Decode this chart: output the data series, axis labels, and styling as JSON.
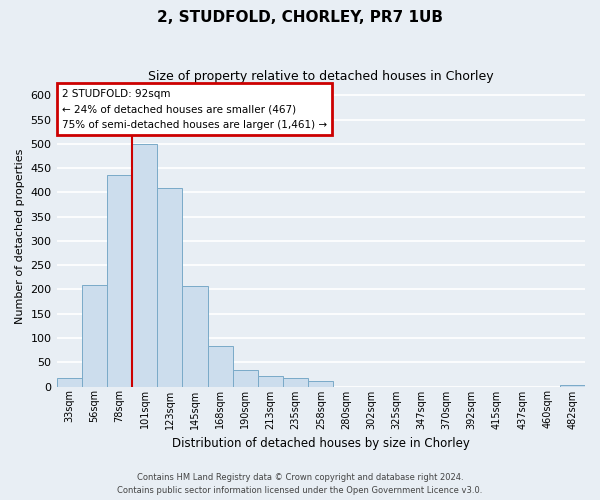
{
  "title": "2, STUDFOLD, CHORLEY, PR7 1UB",
  "subtitle": "Size of property relative to detached houses in Chorley",
  "xlabel": "Distribution of detached houses by size in Chorley",
  "ylabel": "Number of detached properties",
  "footer_line1": "Contains HM Land Registry data © Crown copyright and database right 2024.",
  "footer_line2": "Contains public sector information licensed under the Open Government Licence v3.0.",
  "bin_labels": [
    "33sqm",
    "56sqm",
    "78sqm",
    "101sqm",
    "123sqm",
    "145sqm",
    "168sqm",
    "190sqm",
    "213sqm",
    "235sqm",
    "258sqm",
    "280sqm",
    "302sqm",
    "325sqm",
    "347sqm",
    "370sqm",
    "392sqm",
    "415sqm",
    "437sqm",
    "460sqm",
    "482sqm"
  ],
  "bar_heights": [
    18,
    210,
    435,
    500,
    408,
    208,
    83,
    35,
    22,
    18,
    12,
    0,
    0,
    0,
    0,
    0,
    0,
    0,
    0,
    0,
    3
  ],
  "bar_color": "#ccdded",
  "bar_edge_color": "#7aaac8",
  "ylim": [
    0,
    620
  ],
  "yticks": [
    0,
    50,
    100,
    150,
    200,
    250,
    300,
    350,
    400,
    450,
    500,
    550,
    600
  ],
  "annotation_line1": "2 STUDFOLD: 92sqm",
  "annotation_line2": "← 24% of detached houses are smaller (467)",
  "annotation_line3": "75% of semi-detached houses are larger (1,461) →",
  "vline_x": 2.5,
  "annotation_box_color": "#ffffff",
  "annotation_box_edge_color": "#cc0000",
  "background_color": "#e8eef4",
  "grid_color": "#ffffff",
  "vline_color": "#cc0000"
}
